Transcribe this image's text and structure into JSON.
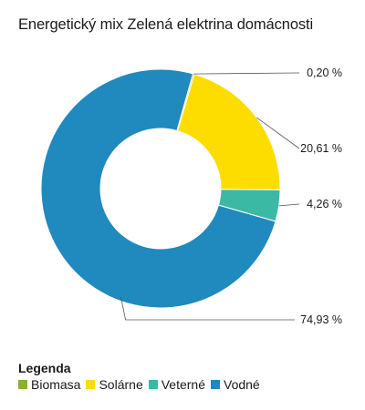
{
  "title": "Energetický mix Zelená elektrina domácnosti",
  "legend_title": "Legenda",
  "chart_data": {
    "type": "pie",
    "donut": true,
    "title": "Energetický mix Zelená elektrina domácnosti",
    "categories": [
      "Biomasa",
      "Solárne",
      "Veterné",
      "Vodné"
    ],
    "values": [
      0.2,
      20.61,
      4.26,
      74.93
    ],
    "value_labels": [
      "0,20 %",
      "20,61 %",
      "4,26 %",
      "74,93 %"
    ],
    "colors": [
      "#8db02d",
      "#fddc00",
      "#3cb9a5",
      "#2089be"
    ],
    "legend_position": "bottom-left"
  }
}
